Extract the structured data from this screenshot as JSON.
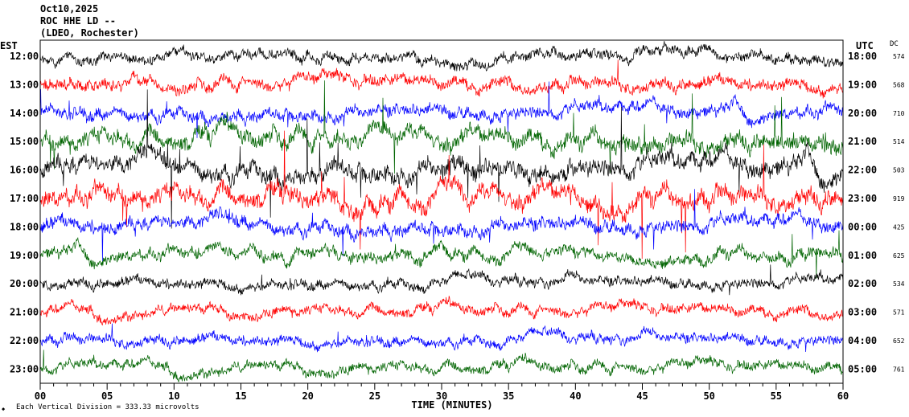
{
  "header": {
    "date": "Oct10,2025",
    "station": "ROC HHE LD --",
    "network": "(LDEO, Rochester)"
  },
  "left_axis_label": "EST",
  "right_axis_label": "UTC",
  "dc_label": "DC",
  "x_axis_title": "TIME (MINUTES)",
  "footer_note": "Each Vertical Division =  333.33 microvolts",
  "colors": {
    "trace_cycle": [
      "#000000",
      "#ff0000",
      "#0000ff",
      "#006400"
    ],
    "axis": "#000000"
  },
  "chart_data": {
    "type": "line",
    "description_of_encoding": "helicorder",
    "title": "ROC HHE LD --",
    "xlabel": "TIME (MINUTES)",
    "xlim": [
      0,
      60
    ],
    "x_ticks": [
      "00",
      "05",
      "10",
      "15",
      "20",
      "25",
      "30",
      "35",
      "40",
      "45",
      "50",
      "55",
      "60"
    ],
    "rows": [
      {
        "est": "12:00",
        "utc": "18:00",
        "dc": "574",
        "color": "#000000",
        "activity": 0.35
      },
      {
        "est": "13:00",
        "utc": "19:00",
        "dc": "568",
        "color": "#ff0000",
        "activity": 0.45
      },
      {
        "est": "14:00",
        "utc": "20:00",
        "dc": "710",
        "color": "#0000ff",
        "activity": 0.5
      },
      {
        "est": "15:00",
        "utc": "21:00",
        "dc": "514",
        "color": "#006400",
        "activity": 0.9
      },
      {
        "est": "16:00",
        "utc": "22:00",
        "dc": "503",
        "color": "#000000",
        "activity": 1.0
      },
      {
        "est": "17:00",
        "utc": "23:00",
        "dc": "919",
        "color": "#ff0000",
        "activity": 1.0
      },
      {
        "est": "18:00",
        "utc": "00:00",
        "dc": "425",
        "color": "#0000ff",
        "activity": 0.6
      },
      {
        "est": "19:00",
        "utc": "01:00",
        "dc": "625",
        "color": "#006400",
        "activity": 0.45
      },
      {
        "est": "20:00",
        "utc": "02:00",
        "dc": "534",
        "color": "#000000",
        "activity": 0.3
      },
      {
        "est": "21:00",
        "utc": "03:00",
        "dc": "571",
        "color": "#ff0000",
        "activity": 0.3
      },
      {
        "est": "22:00",
        "utc": "04:00",
        "dc": "652",
        "color": "#0000ff",
        "activity": 0.3
      },
      {
        "est": "23:00",
        "utc": "05:00",
        "dc": "761",
        "color": "#006400",
        "activity": 0.3
      }
    ]
  }
}
